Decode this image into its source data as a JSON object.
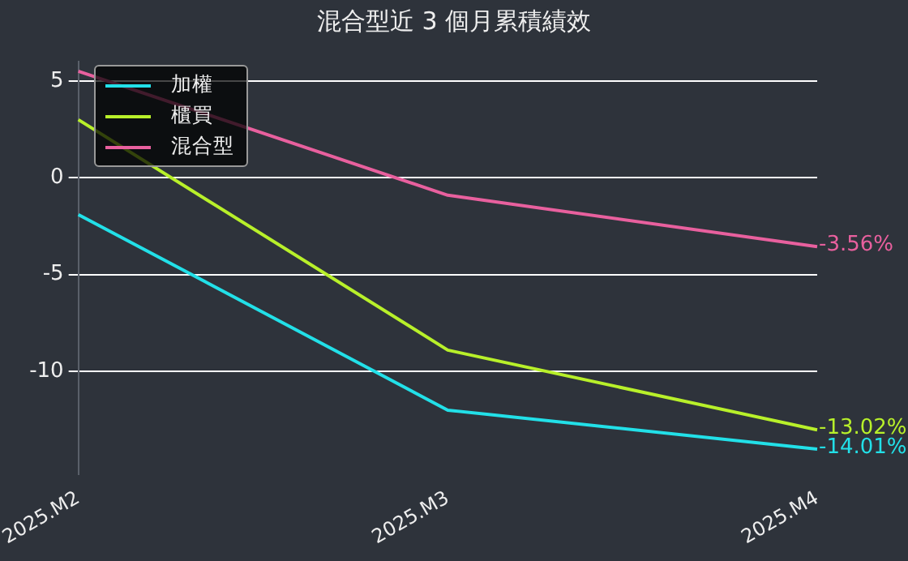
{
  "chart_data": {
    "type": "line",
    "title": "混合型近 3 個月累積績效",
    "categories": [
      "2025.M2",
      "2025.M3",
      "2025.M4"
    ],
    "series": [
      {
        "name": "加權",
        "color": "#22e0e8",
        "values": [
          -1.9,
          -12.0,
          -14.01
        ],
        "value_labels": [
          null,
          null,
          "-14.01%"
        ]
      },
      {
        "name": "櫃買",
        "color": "#b8f02a",
        "values": [
          3.0,
          -8.9,
          -13.02
        ],
        "value_labels": [
          null,
          null,
          "-13.02%"
        ]
      },
      {
        "name": "混合型",
        "color": "#e8609e",
        "values": [
          5.5,
          -0.9,
          -3.56
        ],
        "value_labels": [
          null,
          null,
          "-3.56%"
        ]
      }
    ],
    "ylim": [
      -15.3,
      6
    ],
    "yticks": [
      5,
      0,
      -5,
      -10
    ],
    "grid": "y",
    "legend": "top left",
    "marker": "none",
    "line_style": "solid"
  }
}
